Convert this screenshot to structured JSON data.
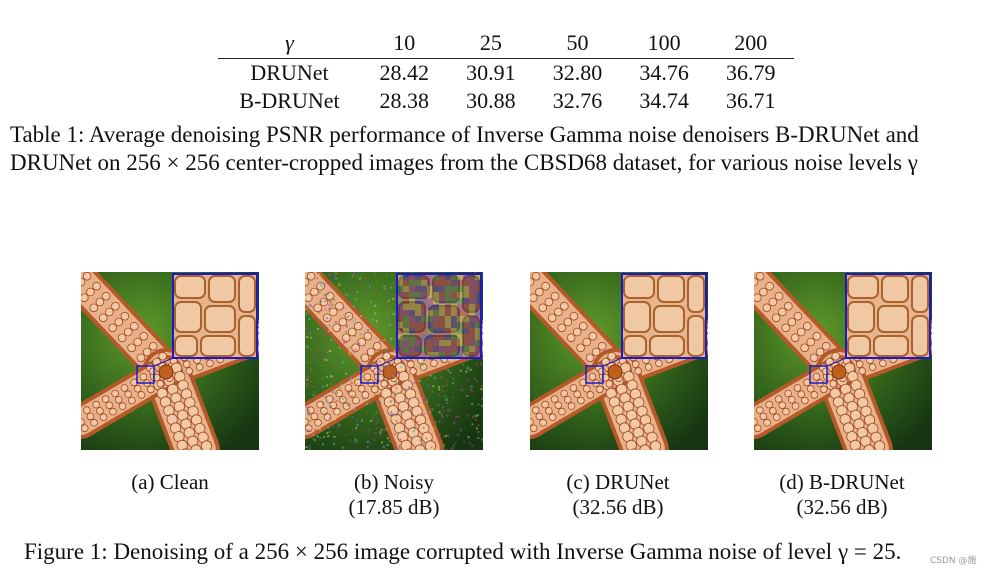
{
  "table": {
    "header": [
      "γ",
      "10",
      "25",
      "50",
      "100",
      "200"
    ],
    "rows": [
      {
        "label": "DRUNet",
        "values": [
          "28.42",
          "30.91",
          "32.80",
          "34.76",
          "36.79"
        ]
      },
      {
        "label": "B-DRUNet",
        "values": [
          "28.38",
          "30.88",
          "32.76",
          "34.74",
          "36.71"
        ]
      }
    ],
    "caption_line1": "Table 1: Average denoising PSNR performance of Inverse Gamma noise denoisers B-DRUNet and",
    "caption_line2": "DRUNet on 256 × 256 center-cropped images from the CBSD68 dataset, for various noise levels γ"
  },
  "figure": {
    "panels": [
      {
        "label": "(a) Clean",
        "psnr": "",
        "variant": "clean"
      },
      {
        "label": "(b) Noisy",
        "psnr": "(17.85 dB)",
        "variant": "noisy"
      },
      {
        "label": "(c) DRUNet",
        "psnr": "(32.56 dB)",
        "variant": "clean"
      },
      {
        "label": "(d) B-DRUNet",
        "psnr": "(32.56 dB)",
        "variant": "clean"
      }
    ],
    "caption": "Figure 1: Denoising of a 256 × 256 image corrupted with Inverse Gamma noise of level γ = 25.",
    "zoom_box_color": "#1a1acc"
  },
  "watermark": "CSDN @施"
}
